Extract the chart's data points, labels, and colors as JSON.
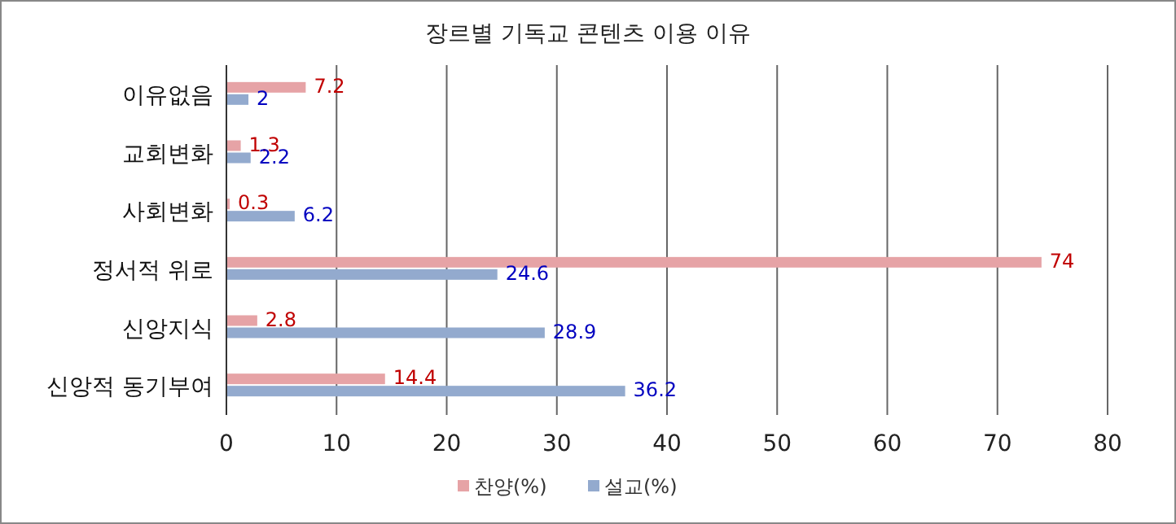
{
  "chart_data": {
    "type": "bar",
    "orientation": "horizontal",
    "title": "장르별 기독교 콘텐츠 이용 이유",
    "categories": [
      "이유없음",
      "교회변화",
      "사회변화",
      "정서적 위로",
      "신앙지식",
      "신앙적 동기부여"
    ],
    "series": [
      {
        "name": "찬양(%)",
        "color": "#e6a3a6",
        "values": [
          7.2,
          1.3,
          0.3,
          74,
          2.8,
          14.4
        ]
      },
      {
        "name": "설교(%)",
        "color": "#93aace",
        "values": [
          2,
          2.2,
          6.2,
          24.6,
          28.9,
          36.2
        ]
      }
    ],
    "xlim": [
      0,
      80
    ],
    "xticks": [
      0,
      10,
      20,
      30,
      40,
      50,
      60,
      70,
      80
    ],
    "grid": "x",
    "legend": "bottom",
    "data_labels": true
  }
}
